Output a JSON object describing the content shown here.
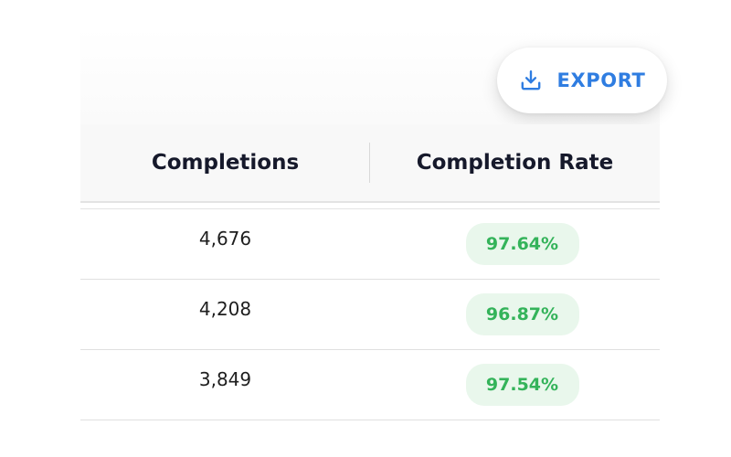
{
  "toolbar": {
    "export_label": "EXPORT",
    "export_icon": "download-icon",
    "accent_color": "#2f7de1"
  },
  "table": {
    "columns": [
      "Completions",
      "Completion Rate"
    ],
    "rows": [
      {
        "completions": "4,676",
        "completion_rate": "97.64%"
      },
      {
        "completions": "4,208",
        "completion_rate": "96.87%"
      },
      {
        "completions": "3,849",
        "completion_rate": "97.54%"
      }
    ],
    "badge_text_color": "#34b35a",
    "badge_bg_color": "#e9f7ec"
  }
}
